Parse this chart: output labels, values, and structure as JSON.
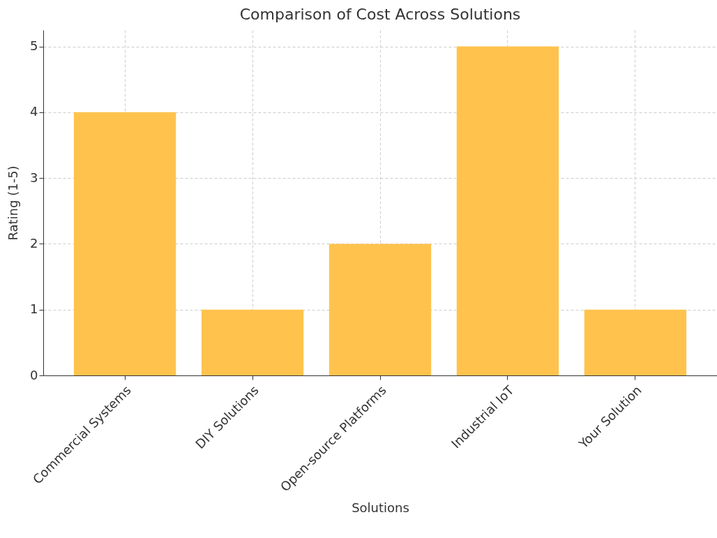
{
  "chart_data": {
    "type": "bar",
    "title": "Comparison of Cost Across Solutions",
    "xlabel": "Solutions",
    "ylabel": "Rating (1-5)",
    "categories": [
      "Commercial Systems",
      "DIY Solutions",
      "Open-source Platforms",
      "Industrial IoT",
      "Your Solution"
    ],
    "values": [
      4,
      1,
      2,
      5,
      1
    ],
    "color": "#ffc34d",
    "ylim": [
      0,
      5.25
    ],
    "yticks": [
      0,
      1,
      2,
      3,
      4,
      5
    ],
    "grid": true
  }
}
